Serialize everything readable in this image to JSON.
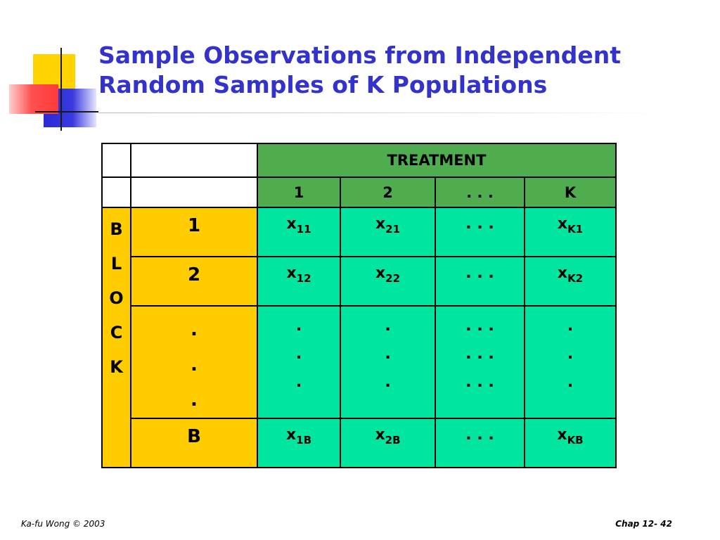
{
  "slide": {
    "title_line1": "Sample Observations from Independent",
    "title_line2": "Random Samples of K Populations",
    "title_color": "#3333cc"
  },
  "table": {
    "treatment_label": "TREATMENT",
    "treatment_columns": [
      "1",
      "2",
      ". . .",
      "K"
    ],
    "block_letters": [
      "B",
      "L",
      "O",
      "C",
      "K"
    ],
    "rows": [
      {
        "label": "1",
        "cells": [
          {
            "base": "x",
            "sub": "11"
          },
          {
            "base": "x",
            "sub": "21"
          },
          {
            "base": ". . .",
            "sub": ""
          },
          {
            "base": "x",
            "sub": "K1"
          }
        ]
      },
      {
        "label": "2",
        "cells": [
          {
            "base": "x",
            "sub": "12"
          },
          {
            "base": "x",
            "sub": "22"
          },
          {
            "base": ". . .",
            "sub": ""
          },
          {
            "base": "x",
            "sub": "K2"
          }
        ]
      },
      {
        "label": ".",
        "dots": true,
        "cells": [
          ".",
          ".",
          ". . .",
          "."
        ]
      },
      {
        "label": "B",
        "cells": [
          {
            "base": "x",
            "sub": "1B"
          },
          {
            "base": "x",
            "sub": "2B"
          },
          {
            "base": ". . .",
            "sub": ""
          },
          {
            "base": "x",
            "sub": "KB"
          }
        ]
      }
    ],
    "colors": {
      "header_green": "#4fad4f",
      "block_yellow": "#ffcc00",
      "cell_teal": "#00e6a0"
    }
  },
  "footer": {
    "left": "Ka-fu Wong © 2003",
    "right": "Chap 12- 42"
  }
}
